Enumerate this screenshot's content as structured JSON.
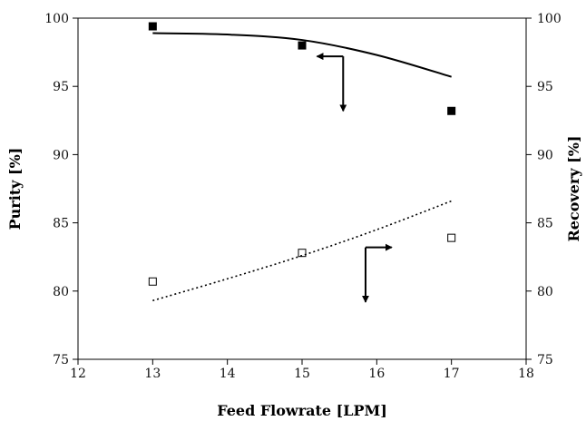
{
  "chart_data": {
    "type": "scatter",
    "title": "",
    "xlabel": "Feed Flowrate [LPM]",
    "ylabel_left": "Purity [%]",
    "ylabel_right": "Recovery [%]",
    "xlim": [
      12,
      18
    ],
    "ylim": [
      75,
      100
    ],
    "x_ticks": [
      12,
      13,
      14,
      15,
      16,
      17,
      18
    ],
    "y_ticks": [
      75,
      80,
      85,
      90,
      95,
      100
    ],
    "grid": false,
    "series": [
      {
        "key": "purity_measured",
        "axis": "left",
        "marker": "filled-square",
        "x": [
          13,
          15,
          17
        ],
        "y": [
          99.4,
          98.0,
          93.2
        ]
      },
      {
        "key": "purity_model",
        "axis": "left",
        "style": "solid-line",
        "x": [
          13,
          14,
          15,
          16,
          17
        ],
        "y": [
          98.9,
          98.8,
          98.4,
          97.3,
          95.7
        ]
      },
      {
        "key": "recovery_measured",
        "axis": "right",
        "marker": "open-square",
        "x": [
          13,
          15,
          17
        ],
        "y": [
          80.7,
          82.8,
          83.9
        ]
      },
      {
        "key": "recovery_model",
        "axis": "right",
        "style": "dotted-line",
        "x": [
          13,
          14,
          15,
          16,
          17
        ],
        "y": [
          79.3,
          80.9,
          82.6,
          84.5,
          86.6
        ]
      }
    ],
    "annotations": [
      {
        "type": "axis-pointer-arrow",
        "points_to": "left",
        "anchor_x": 15.55,
        "anchor_y": 97.2,
        "branch_dx": -0.35,
        "branch_dy": -4
      },
      {
        "type": "axis-pointer-arrow",
        "points_to": "right",
        "anchor_x": 15.85,
        "anchor_y": 83.2,
        "branch_dx": 0.35,
        "branch_dy": -4
      }
    ]
  }
}
